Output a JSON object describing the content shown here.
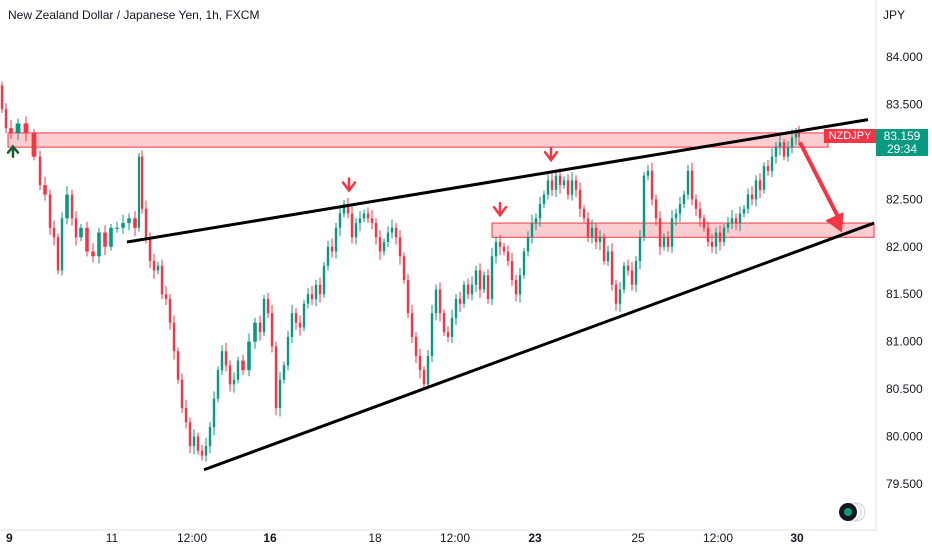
{
  "chart_data": {
    "type": "candlestick",
    "title": "New Zealand Dollar / Japanese Yen, 1h, FXCM",
    "unit": "JPY",
    "symbol": "NZDJPY",
    "last_price": "83.159",
    "countdown": "29:34",
    "ylim": [
      79.3,
      84.3
    ],
    "y_ticks": [
      "84.000",
      "83.500",
      "83.000",
      "82.500",
      "82.000",
      "81.500",
      "81.000",
      "80.500",
      "80.000",
      "79.500"
    ],
    "x_ticks": [
      {
        "label": "9",
        "bold": true
      },
      {
        "label": "11",
        "bold": false
      },
      {
        "label": "12:00",
        "bold": false
      },
      {
        "label": "16",
        "bold": true
      },
      {
        "label": "18",
        "bold": false
      },
      {
        "label": "12:00",
        "bold": false
      },
      {
        "label": "23",
        "bold": true
      },
      {
        "label": "25",
        "bold": false
      },
      {
        "label": "12:00",
        "bold": false
      },
      {
        "label": "30",
        "bold": true
      }
    ],
    "price_path": [
      [
        0,
        83.7
      ],
      [
        4,
        83.45
      ],
      [
        8,
        83.25
      ],
      [
        14,
        83.2
      ],
      [
        22,
        83.3
      ],
      [
        30,
        83.2
      ],
      [
        38,
        82.95
      ],
      [
        42,
        82.65
      ],
      [
        48,
        82.55
      ],
      [
        52,
        82.2
      ],
      [
        56,
        82.1
      ],
      [
        60,
        81.75
      ],
      [
        64,
        82.3
      ],
      [
        70,
        82.55
      ],
      [
        74,
        82.3
      ],
      [
        78,
        82.1
      ],
      [
        84,
        82.2
      ],
      [
        90,
        81.95
      ],
      [
        96,
        81.9
      ],
      [
        102,
        82.15
      ],
      [
        108,
        82.0
      ],
      [
        114,
        82.2
      ],
      [
        120,
        82.2
      ],
      [
        126,
        82.25
      ],
      [
        132,
        82.3
      ],
      [
        138,
        82.2
      ],
      [
        140,
        82.95
      ],
      [
        144,
        82.4
      ],
      [
        148,
        82.1
      ],
      [
        152,
        81.85
      ],
      [
        156,
        81.75
      ],
      [
        160,
        81.8
      ],
      [
        164,
        81.5
      ],
      [
        168,
        81.45
      ],
      [
        172,
        81.2
      ],
      [
        176,
        80.9
      ],
      [
        180,
        80.6
      ],
      [
        184,
        80.3
      ],
      [
        188,
        80.15
      ],
      [
        192,
        79.9
      ],
      [
        196,
        80.0
      ],
      [
        200,
        79.85
      ],
      [
        204,
        79.8
      ],
      [
        208,
        79.9
      ],
      [
        212,
        80.1
      ],
      [
        216,
        80.4
      ],
      [
        220,
        80.7
      ],
      [
        224,
        80.9
      ],
      [
        228,
        80.75
      ],
      [
        232,
        80.55
      ],
      [
        236,
        80.6
      ],
      [
        240,
        80.8
      ],
      [
        246,
        80.7
      ],
      [
        252,
        81.0
      ],
      [
        258,
        81.2
      ],
      [
        262,
        81.1
      ],
      [
        266,
        81.45
      ],
      [
        270,
        81.3
      ],
      [
        274,
        80.95
      ],
      [
        278,
        80.3
      ],
      [
        282,
        80.6
      ],
      [
        286,
        80.75
      ],
      [
        290,
        81.05
      ],
      [
        294,
        81.3
      ],
      [
        298,
        81.2
      ],
      [
        302,
        81.15
      ],
      [
        306,
        81.4
      ],
      [
        310,
        81.5
      ],
      [
        314,
        81.45
      ],
      [
        318,
        81.6
      ],
      [
        322,
        81.5
      ],
      [
        326,
        81.8
      ],
      [
        330,
        82.0
      ],
      [
        334,
        81.95
      ],
      [
        338,
        82.2
      ],
      [
        342,
        82.35
      ],
      [
        346,
        82.45
      ],
      [
        350,
        82.35
      ],
      [
        354,
        82.1
      ],
      [
        358,
        82.25
      ],
      [
        362,
        82.3
      ],
      [
        366,
        82.35
      ],
      [
        370,
        82.3
      ],
      [
        374,
        82.25
      ],
      [
        378,
        82.1
      ],
      [
        382,
        81.95
      ],
      [
        386,
        82.05
      ],
      [
        390,
        82.15
      ],
      [
        394,
        82.2
      ],
      [
        398,
        82.1
      ],
      [
        402,
        81.9
      ],
      [
        406,
        81.65
      ],
      [
        410,
        81.3
      ],
      [
        414,
        81.05
      ],
      [
        418,
        80.85
      ],
      [
        422,
        80.7
      ],
      [
        426,
        80.55
      ],
      [
        430,
        80.85
      ],
      [
        434,
        81.3
      ],
      [
        438,
        81.55
      ],
      [
        442,
        81.3
      ],
      [
        446,
        81.1
      ],
      [
        450,
        81.05
      ],
      [
        454,
        81.25
      ],
      [
        458,
        81.45
      ],
      [
        462,
        81.4
      ],
      [
        466,
        81.6
      ],
      [
        470,
        81.5
      ],
      [
        474,
        81.6
      ],
      [
        478,
        81.75
      ],
      [
        482,
        81.55
      ],
      [
        486,
        81.7
      ],
      [
        490,
        81.45
      ],
      [
        494,
        81.9
      ],
      [
        498,
        82.05
      ],
      [
        502,
        82.0
      ],
      [
        506,
        81.95
      ],
      [
        510,
        81.85
      ],
      [
        514,
        81.65
      ],
      [
        518,
        81.5
      ],
      [
        522,
        81.7
      ],
      [
        526,
        81.95
      ],
      [
        530,
        82.1
      ],
      [
        534,
        82.25
      ],
      [
        538,
        82.3
      ],
      [
        542,
        82.45
      ],
      [
        546,
        82.55
      ],
      [
        550,
        82.7
      ],
      [
        554,
        82.6
      ],
      [
        558,
        82.75
      ],
      [
        562,
        82.65
      ],
      [
        566,
        82.7
      ],
      [
        570,
        82.55
      ],
      [
        574,
        82.7
      ],
      [
        578,
        82.6
      ],
      [
        582,
        82.4
      ],
      [
        586,
        82.3
      ],
      [
        590,
        82.1
      ],
      [
        594,
        82.2
      ],
      [
        598,
        82.05
      ],
      [
        602,
        82.1
      ],
      [
        606,
        81.85
      ],
      [
        610,
        81.95
      ],
      [
        614,
        81.6
      ],
      [
        618,
        81.4
      ],
      [
        622,
        81.55
      ],
      [
        626,
        81.8
      ],
      [
        630,
        81.75
      ],
      [
        634,
        81.6
      ],
      [
        638,
        81.85
      ],
      [
        642,
        82.1
      ],
      [
        646,
        82.75
      ],
      [
        650,
        82.8
      ],
      [
        654,
        82.5
      ],
      [
        658,
        82.3
      ],
      [
        662,
        82.0
      ],
      [
        666,
        82.1
      ],
      [
        670,
        82.0
      ],
      [
        674,
        82.3
      ],
      [
        678,
        82.35
      ],
      [
        682,
        82.45
      ],
      [
        686,
        82.55
      ],
      [
        690,
        82.8
      ],
      [
        694,
        82.5
      ],
      [
        698,
        82.4
      ],
      [
        702,
        82.3
      ],
      [
        706,
        82.2
      ],
      [
        710,
        82.05
      ],
      [
        714,
        82.0
      ],
      [
        718,
        82.15
      ],
      [
        722,
        82.05
      ],
      [
        726,
        82.2
      ],
      [
        730,
        82.25
      ],
      [
        734,
        82.3
      ],
      [
        738,
        82.25
      ],
      [
        742,
        82.35
      ],
      [
        746,
        82.4
      ],
      [
        750,
        82.55
      ],
      [
        754,
        82.5
      ],
      [
        758,
        82.7
      ],
      [
        762,
        82.6
      ],
      [
        766,
        82.85
      ],
      [
        770,
        82.8
      ],
      [
        774,
        82.95
      ],
      [
        778,
        83.05
      ],
      [
        782,
        83.1
      ],
      [
        786,
        82.95
      ],
      [
        790,
        83.05
      ],
      [
        794,
        83.15
      ],
      [
        798,
        83.2
      ],
      [
        800,
        83.159
      ]
    ],
    "zones": [
      {
        "x1": 8,
        "x2": 828,
        "y_low": 83.05,
        "y_high": 83.2
      },
      {
        "x1": 492,
        "x2": 874,
        "y_low": 82.1,
        "y_high": 82.25
      }
    ],
    "trendlines": [
      {
        "x1": 127,
        "y1": 82.05,
        "x2": 868,
        "y2": 83.34
      },
      {
        "x1": 204,
        "y1": 79.65,
        "x2": 874,
        "y2": 82.25
      }
    ],
    "markers_down": [
      {
        "x": 349,
        "price": 82.53
      },
      {
        "x": 551,
        "price": 82.85
      },
      {
        "x": 500,
        "price": 82.27
      }
    ],
    "markers_up": [
      {
        "x": 13,
        "price": 82.95
      }
    ],
    "projection": {
      "from_x": 800,
      "from_price": 83.1,
      "to_x": 842,
      "to_price": 82.15
    },
    "colors": {
      "up": "#089981",
      "down": "#f23645",
      "zone": "#f23645",
      "line": "#000000"
    }
  }
}
